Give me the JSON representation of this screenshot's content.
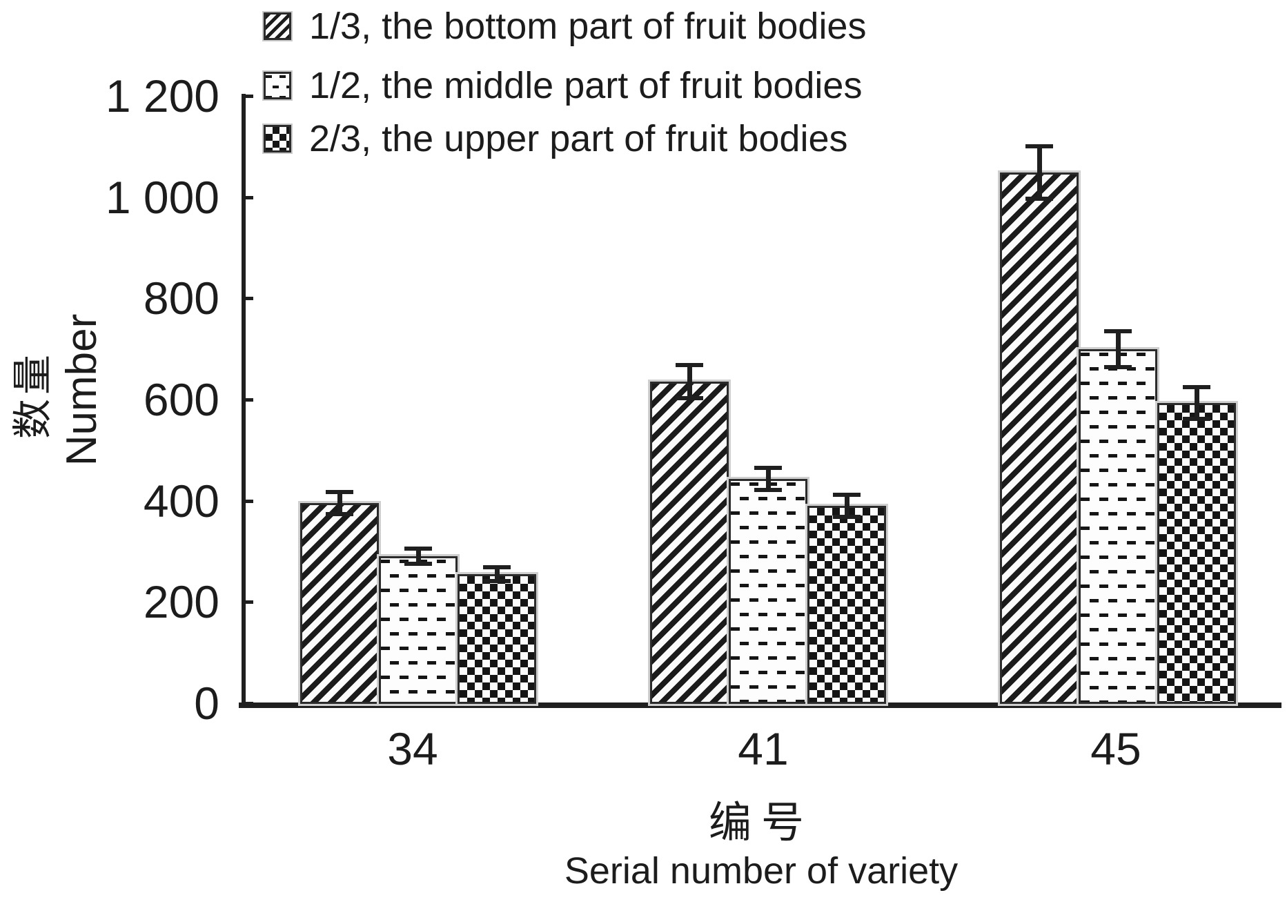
{
  "chart_data": {
    "type": "bar",
    "title": "",
    "categories": [
      "34",
      "41",
      "45"
    ],
    "series": [
      {
        "name": "1/3, the bottom part of fruit bodies",
        "pattern": "diagonal-hatch",
        "values": [
          395,
          635,
          1048
        ],
        "errors": [
          22,
          33,
          52
        ]
      },
      {
        "name": "1/2, the middle part of fruit bodies",
        "pattern": "horizontal-dashes",
        "values": [
          290,
          443,
          700
        ],
        "errors": [
          15,
          22,
          36
        ]
      },
      {
        "name": "2/3, the upper part of fruit bodies",
        "pattern": "checkerboard",
        "values": [
          255,
          390,
          593
        ],
        "errors": [
          13,
          22,
          31
        ]
      }
    ],
    "xlabel_zh": "编号",
    "xlabel_en": "Serial number of variety",
    "ylabel_zh": "数量",
    "ylabel_en": "Number",
    "ylim": [
      0,
      1200
    ],
    "ytick_step": 200,
    "ytick_labels": [
      "0",
      "200",
      "400",
      "600",
      "800",
      "1 000",
      "1 200"
    ],
    "grid": "off",
    "legend_position": "top-left inside plot",
    "error_bars": "symmetric with caps"
  },
  "colors": {
    "ink": "#1c1c1c",
    "background": "#ffffff",
    "bar_fill": "#fbfbfb",
    "bar_border": "#2b2b2b",
    "halo": "#cfcfcf"
  }
}
